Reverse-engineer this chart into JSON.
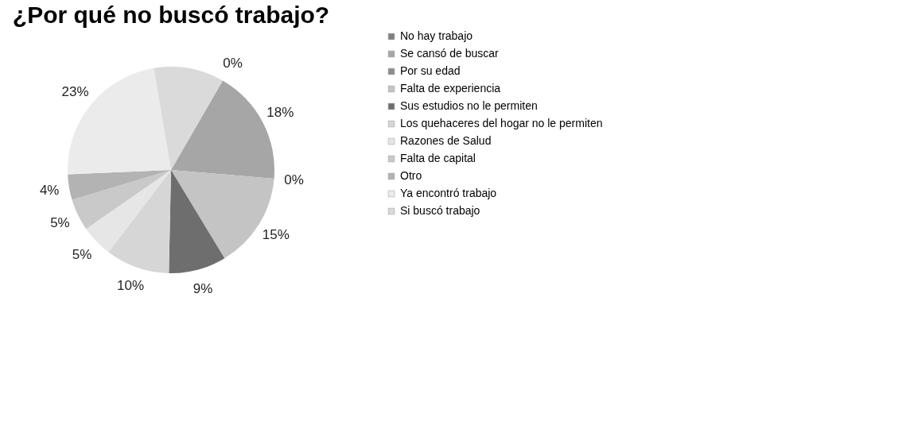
{
  "chart_data": {
    "type": "pie",
    "title": "¿Por qué no buscó trabajo?",
    "categories": [
      "No hay trabajo",
      "Se cansó de buscar",
      "Por su edad",
      "Falta de experiencia",
      "Sus estudios no le permiten",
      "Los quehaceres del hogar no le permiten",
      "Razones de Salud",
      "Falta de capital",
      "Otro",
      "Ya encontró trabajo",
      "Si buscó trabajo"
    ],
    "values": [
      0,
      18,
      0,
      15,
      9,
      10,
      5,
      5,
      4,
      23,
      11
    ],
    "value_labels": [
      "0%",
      "18%",
      "0%",
      "15%",
      "9%",
      "10%",
      "5%",
      "5%",
      "4%",
      "23%",
      null
    ],
    "colors": [
      "#808080",
      "#a6a6a6",
      "#8c8c8c",
      "#c4c4c4",
      "#6e6e6e",
      "#d6d6d6",
      "#e6e6e6",
      "#c9c9c9",
      "#b3b3b3",
      "#ebebeb",
      "#dadada"
    ],
    "legend": "right"
  }
}
